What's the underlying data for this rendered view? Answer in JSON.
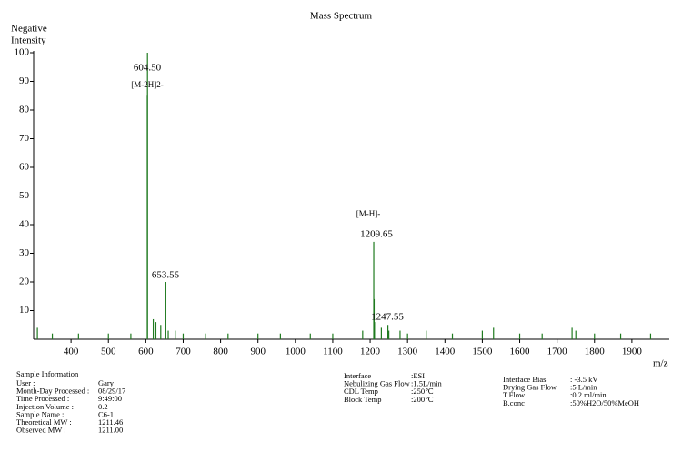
{
  "chart_data": {
    "type": "spectrum",
    "title": "Mass Spectrum",
    "y_label": [
      "Negative",
      "Intensity"
    ],
    "x_label": "m/z",
    "color": "#1f7a1f",
    "xlim": [
      300,
      2000
    ],
    "xticks": [
      400,
      500,
      600,
      700,
      800,
      900,
      1000,
      1100,
      1200,
      1300,
      1400,
      1500,
      1600,
      1700,
      1800,
      1900
    ],
    "ylim": [
      0,
      100
    ],
    "yticks": [
      10,
      20,
      30,
      40,
      50,
      60,
      70,
      80,
      90,
      100
    ],
    "x": [
      310,
      350,
      420,
      500,
      560,
      604.0,
      604.5,
      620,
      627,
      640,
      653.55,
      660,
      680,
      700,
      760,
      820,
      900,
      960,
      1040,
      1100,
      1180,
      1209.65,
      1210.65,
      1211.65,
      1230,
      1247.55,
      1250,
      1280,
      1300,
      1350,
      1420,
      1500,
      1530,
      1600,
      1660,
      1740,
      1750,
      1800,
      1870,
      1950
    ],
    "values": [
      4,
      2,
      2,
      2,
      2,
      85,
      100,
      7,
      6,
      5,
      20,
      3,
      3,
      2,
      2,
      2,
      2,
      2,
      2,
      2,
      3,
      34,
      14,
      6,
      4,
      5,
      3,
      3,
      2,
      3,
      2,
      3,
      4,
      2,
      2,
      4,
      3,
      2,
      2,
      2
    ],
    "annotations": [
      "604.50",
      "[M-2H]2-",
      "653.55",
      "[M-H]-",
      "1209.65",
      "1247.55"
    ]
  },
  "sample_info": {
    "title": "Sample Information",
    "rows": [
      [
        "User :",
        "Gary"
      ],
      [
        "Month-Day Processed :",
        "08/29/17"
      ],
      [
        "Time Processed :",
        "9:49:00"
      ],
      [
        "Injection Volume :",
        "0.2"
      ],
      [
        "Sample Name :",
        "C6-1"
      ],
      [
        "Theoretical MW :",
        "1211.46"
      ],
      [
        "Observed MW :",
        "1211.00"
      ]
    ]
  },
  "interface_info": {
    "rows": [
      [
        "Interface",
        ":ESI"
      ],
      [
        "Nebulizing Gas Flow",
        ":1.5L/min"
      ],
      [
        "CDL Temp",
        ":250℃"
      ],
      [
        "Block Temp",
        ":200℃"
      ]
    ]
  },
  "flow_info": {
    "rows": [
      [
        "Interface Bias",
        ": -3.5 kV"
      ],
      [
        "Drying Gas Flow",
        ":5 L/min"
      ],
      [
        "T.Flow",
        ":0.2 ml/min"
      ],
      [
        "B.conc",
        ":50%H2O/50%MeOH"
      ]
    ]
  }
}
